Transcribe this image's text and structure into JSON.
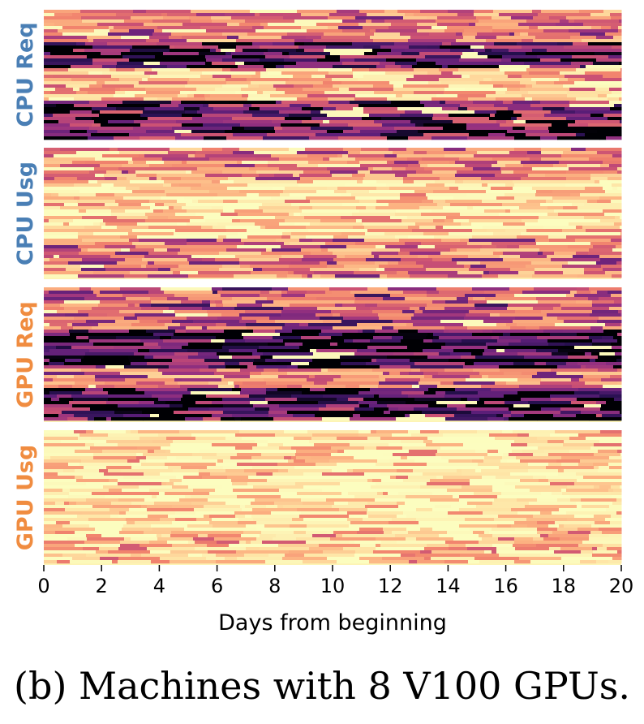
{
  "chart_data": {
    "type": "heatmap",
    "xlabel": "Days from beginning",
    "x_ticks": [
      0,
      2,
      4,
      6,
      8,
      10,
      12,
      14,
      16,
      18,
      20
    ],
    "xlim": [
      0,
      20
    ],
    "colormap": "magma_r",
    "panels": [
      {
        "label": "CPU Req",
        "label_color": "#4a7fb5",
        "mean_level": 0.55,
        "bands": [
          {
            "from": 0.0,
            "to": 0.25,
            "level": 0.45
          },
          {
            "from": 0.25,
            "to": 0.45,
            "level": 0.85
          },
          {
            "from": 0.45,
            "to": 0.7,
            "level": 0.25
          },
          {
            "from": 0.7,
            "to": 1.0,
            "level": 0.8
          }
        ]
      },
      {
        "label": "CPU Usg",
        "label_color": "#4a7fb5",
        "mean_level": 0.3,
        "bands": [
          {
            "from": 0.0,
            "to": 0.25,
            "level": 0.4
          },
          {
            "from": 0.25,
            "to": 0.7,
            "level": 0.15
          },
          {
            "from": 0.7,
            "to": 1.0,
            "level": 0.45
          }
        ]
      },
      {
        "label": "GPU Req",
        "label_color": "#f08c40",
        "mean_level": 0.7,
        "bands": [
          {
            "from": 0.0,
            "to": 0.3,
            "level": 0.55
          },
          {
            "from": 0.3,
            "to": 0.6,
            "level": 0.9
          },
          {
            "from": 0.6,
            "to": 0.75,
            "level": 0.45
          },
          {
            "from": 0.75,
            "to": 1.0,
            "level": 0.85
          }
        ]
      },
      {
        "label": "GPU Usg",
        "label_color": "#f08c40",
        "mean_level": 0.15,
        "bands": [
          {
            "from": 0.0,
            "to": 0.4,
            "level": 0.15
          },
          {
            "from": 0.4,
            "to": 0.75,
            "level": 0.08
          },
          {
            "from": 0.75,
            "to": 1.0,
            "level": 0.22
          }
        ]
      }
    ]
  },
  "caption": "(b) Machines with 8 V100 GPUs."
}
